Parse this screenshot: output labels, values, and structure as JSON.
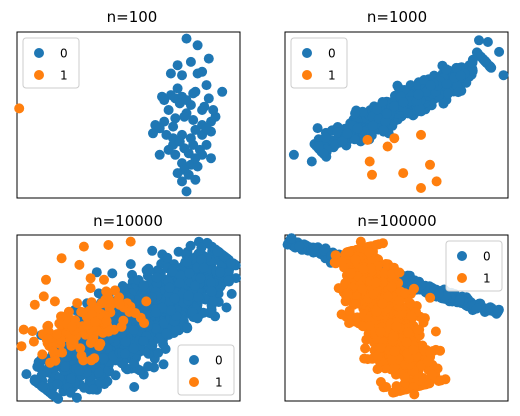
{
  "colors": {
    "class0": "#1f77b4",
    "class1": "#ff7f0e"
  },
  "chart_data": [
    {
      "type": "scatter",
      "title": "n=100",
      "legend": {
        "placement": "upper-left",
        "entries": [
          "0",
          "1"
        ]
      },
      "axes_visible": false,
      "xlim": [
        0,
        10
      ],
      "ylim": [
        0,
        10
      ],
      "series": [
        {
          "name": "0",
          "color": "#1f77b4",
          "points": [
            [
              7.6,
              9.6
            ],
            [
              8.1,
              9.2
            ],
            [
              8.6,
              8.4
            ],
            [
              7.2,
              8.0
            ],
            [
              8.3,
              7.6
            ],
            [
              6.9,
              7.5
            ],
            [
              7.4,
              7.4
            ],
            [
              8.1,
              7.5
            ],
            [
              6.5,
              6.1
            ],
            [
              6.9,
              6.2
            ],
            [
              7.1,
              6.0
            ],
            [
              7.4,
              6.1
            ],
            [
              8.0,
              6.4
            ],
            [
              8.6,
              6.0
            ],
            [
              9.2,
              6.4
            ],
            [
              7.3,
              5.7
            ],
            [
              7.8,
              5.6
            ],
            [
              8.3,
              5.3
            ],
            [
              7.6,
              5.1
            ],
            [
              6.2,
              4.4
            ],
            [
              6.6,
              4.6
            ],
            [
              7.1,
              4.8
            ],
            [
              7.5,
              4.9
            ],
            [
              7.9,
              4.7
            ],
            [
              8.3,
              4.4
            ],
            [
              8.7,
              4.6
            ],
            [
              6.1,
              3.9
            ],
            [
              6.7,
              3.8
            ],
            [
              7.0,
              3.6
            ],
            [
              7.4,
              3.8
            ],
            [
              7.8,
              3.6
            ],
            [
              8.3,
              3.8
            ],
            [
              8.7,
              4.0
            ],
            [
              7.0,
              3.2
            ],
            [
              7.5,
              3.0
            ],
            [
              7.9,
              3.2
            ],
            [
              8.2,
              2.9
            ],
            [
              6.4,
              2.6
            ],
            [
              7.1,
              2.6
            ],
            [
              7.7,
              2.7
            ],
            [
              8.3,
              2.6
            ],
            [
              8.7,
              2.4
            ],
            [
              7.4,
              2.1
            ],
            [
              7.8,
              2.0
            ],
            [
              7.5,
              1.7
            ],
            [
              8.1,
              1.9
            ],
            [
              7.7,
              1.4
            ],
            [
              7.4,
              1.0
            ],
            [
              8.0,
              1.1
            ],
            [
              7.6,
              0.4
            ],
            [
              8.9,
              4.9
            ],
            [
              6.8,
              5.3
            ],
            [
              8.5,
              6.8
            ],
            [
              7.8,
              8.2
            ],
            [
              7.9,
              6.3
            ],
            [
              7.0,
              4.3
            ],
            [
              8.0,
              4.1
            ],
            [
              7.3,
              3.4
            ],
            [
              8.5,
              3.2
            ],
            [
              6.8,
              2.9
            ],
            [
              8.0,
              2.4
            ],
            [
              7.2,
              1.5
            ],
            [
              8.4,
              5.5
            ],
            [
              6.6,
              5.9
            ],
            [
              7.6,
              5.9
            ],
            [
              7.2,
              6.6
            ],
            [
              8.8,
              5.3
            ],
            [
              6.4,
              4.2
            ],
            [
              8.5,
              4.2
            ]
          ]
        },
        {
          "name": "1",
          "color": "#ff7f0e",
          "points": [
            [
              0.1,
              5.4
            ]
          ]
        }
      ]
    },
    {
      "type": "scatter",
      "title": "n=1000",
      "legend": {
        "placement": "upper-left",
        "entries": [
          "0",
          "1"
        ]
      },
      "axes_visible": false,
      "xlim": [
        0,
        10
      ],
      "ylim": [
        0,
        10
      ],
      "series": [
        {
          "name": "0",
          "color": "#1f77b4",
          "cloud": {
            "from": [
              1.5,
              3.0
            ],
            "to": [
              9.0,
              8.2
            ],
            "width": 1.0,
            "count": 600,
            "seed": 11
          },
          "points": [
            [
              0.4,
              2.6
            ],
            [
              9.6,
              8.8
            ],
            [
              9.8,
              7.4
            ],
            [
              9.1,
              9.4
            ],
            [
              1.2,
              2.2
            ],
            [
              8.7,
              9.5
            ]
          ]
        },
        {
          "name": "1",
          "color": "#ff7f0e",
          "points": [
            [
              3.7,
              3.5
            ],
            [
              4.6,
              3.1
            ],
            [
              4.9,
              3.6
            ],
            [
              6.1,
              3.8
            ],
            [
              3.8,
              2.2
            ],
            [
              3.9,
              1.4
            ],
            [
              5.3,
              1.5
            ],
            [
              6.5,
              2.0
            ],
            [
              6.8,
              1.0
            ],
            [
              6.1,
              0.6
            ]
          ]
        }
      ]
    },
    {
      "type": "scatter",
      "title": "n=10000",
      "legend": {
        "placement": "lower-right",
        "entries": [
          "0",
          "1"
        ]
      },
      "axes_visible": false,
      "xlim": [
        0,
        10
      ],
      "ylim": [
        0,
        10
      ],
      "series": [
        {
          "name": "0",
          "color": "#1f77b4",
          "cloud": {
            "from": [
              1.2,
              0.8
            ],
            "to": [
              9.4,
              8.6
            ],
            "width": 2.4,
            "count": 1500,
            "seed": 29
          },
          "points": [
            [
              9.6,
              8.3
            ],
            [
              9.0,
              9.0
            ],
            [
              0.8,
              1.3
            ],
            [
              2.4,
              0.5
            ]
          ]
        },
        {
          "name": "1",
          "color": "#ff7f0e",
          "cloud": {
            "from": [
              1.0,
              3.0
            ],
            "to": [
              5.0,
              5.8
            ],
            "width": 1.8,
            "count": 130,
            "seed": 7
          },
          "points": [
            [
              3.0,
              9.3
            ],
            [
              4.1,
              9.4
            ],
            [
              5.1,
              9.6
            ],
            [
              2.0,
              8.6
            ],
            [
              3.3,
              7.4
            ],
            [
              1.3,
              7.3
            ],
            [
              3.9,
              7.3
            ],
            [
              3.3,
              6.8
            ],
            [
              1.2,
              6.3
            ],
            [
              0.3,
              4.3
            ],
            [
              0.2,
              3.3
            ],
            [
              5.7,
              4.7
            ],
            [
              5.8,
              6.0
            ],
            [
              4.0,
              6.6
            ],
            [
              2.7,
              5.9
            ],
            [
              2.8,
              8.2
            ],
            [
              0.8,
              5.8
            ],
            [
              1.7,
              6.0
            ],
            [
              4.6,
              5.8
            ],
            [
              5.3,
              5.3
            ]
          ]
        }
      ]
    },
    {
      "type": "scatter",
      "title": "n=100000",
      "legend": {
        "placement": "upper-right",
        "entries": [
          "0",
          "1"
        ]
      },
      "axes_visible": false,
      "xlim": [
        0,
        10
      ],
      "ylim": [
        0,
        10
      ],
      "series": [
        {
          "name": "0",
          "color": "#1f77b4",
          "cloud": {
            "from": [
              0.2,
              9.6
            ],
            "to": [
              9.5,
              5.3
            ],
            "width": 0.35,
            "count": 650,
            "seed": 3
          },
          "points": []
        },
        {
          "name": "1",
          "color": "#ff7f0e",
          "cloud": {
            "from": [
              3.2,
              9.1
            ],
            "to": [
              6.0,
              0.9
            ],
            "width": 1.7,
            "count": 900,
            "seed": 17
          },
          "points": [
            [
              5.8,
              0.4
            ],
            [
              3.4,
              9.6
            ],
            [
              6.4,
              2.4
            ],
            [
              5.0,
              0.9
            ]
          ]
        }
      ]
    }
  ]
}
